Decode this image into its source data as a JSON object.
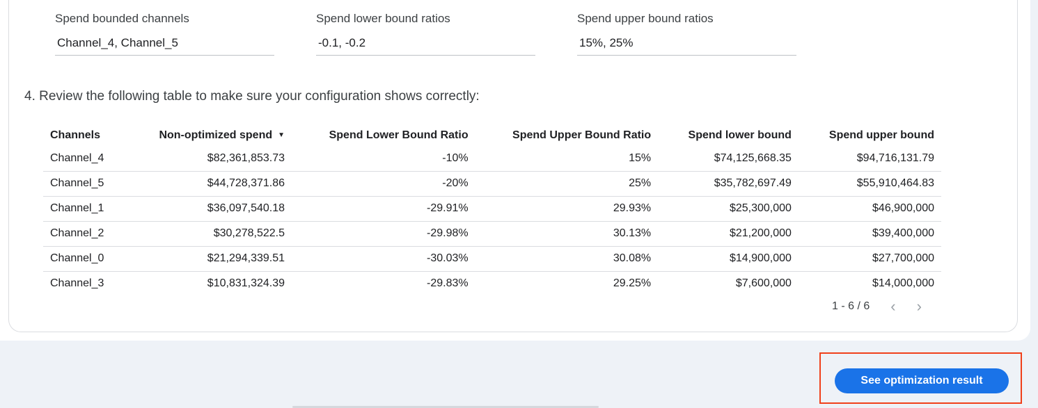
{
  "fields": [
    {
      "label": "Spend bounded channels",
      "value": "Channel_4, Channel_5"
    },
    {
      "label": "Spend lower bound ratios",
      "value": "-0.1, -0.2"
    },
    {
      "label": "Spend upper bound ratios",
      "value": "15%, 25%"
    }
  ],
  "step_text": "4. Review the following table to make sure your configuration shows correctly:",
  "table": {
    "headers": [
      "Channels",
      "Non-optimized spend",
      "Spend Lower Bound Ratio",
      "Spend Upper Bound Ratio",
      "Spend lower bound",
      "Spend upper bound"
    ],
    "sort_icon": "sort-descending-icon",
    "rows": [
      [
        "Channel_4",
        "$82,361,853.73",
        "-10%",
        "15%",
        "$74,125,668.35",
        "$94,716,131.79"
      ],
      [
        "Channel_5",
        "$44,728,371.86",
        "-20%",
        "25%",
        "$35,782,697.49",
        "$55,910,464.83"
      ],
      [
        "Channel_1",
        "$36,097,540.18",
        "-29.91%",
        "29.93%",
        "$25,300,000",
        "$46,900,000"
      ],
      [
        "Channel_2",
        "$30,278,522.5",
        "-29.98%",
        "30.13%",
        "$21,200,000",
        "$39,400,000"
      ],
      [
        "Channel_0",
        "$21,294,339.51",
        "-30.03%",
        "30.08%",
        "$14,900,000",
        "$27,700,000"
      ],
      [
        "Channel_3",
        "$10,831,324.39",
        "-29.83%",
        "29.25%",
        "$7,600,000",
        "$14,000,000"
      ]
    ]
  },
  "pagination": {
    "label": "1 - 6 / 6",
    "prev": "‹",
    "next": "›"
  },
  "button_label": "See optimization result",
  "colors": {
    "primary": "#1a73e8",
    "highlight": "#f0401a"
  }
}
